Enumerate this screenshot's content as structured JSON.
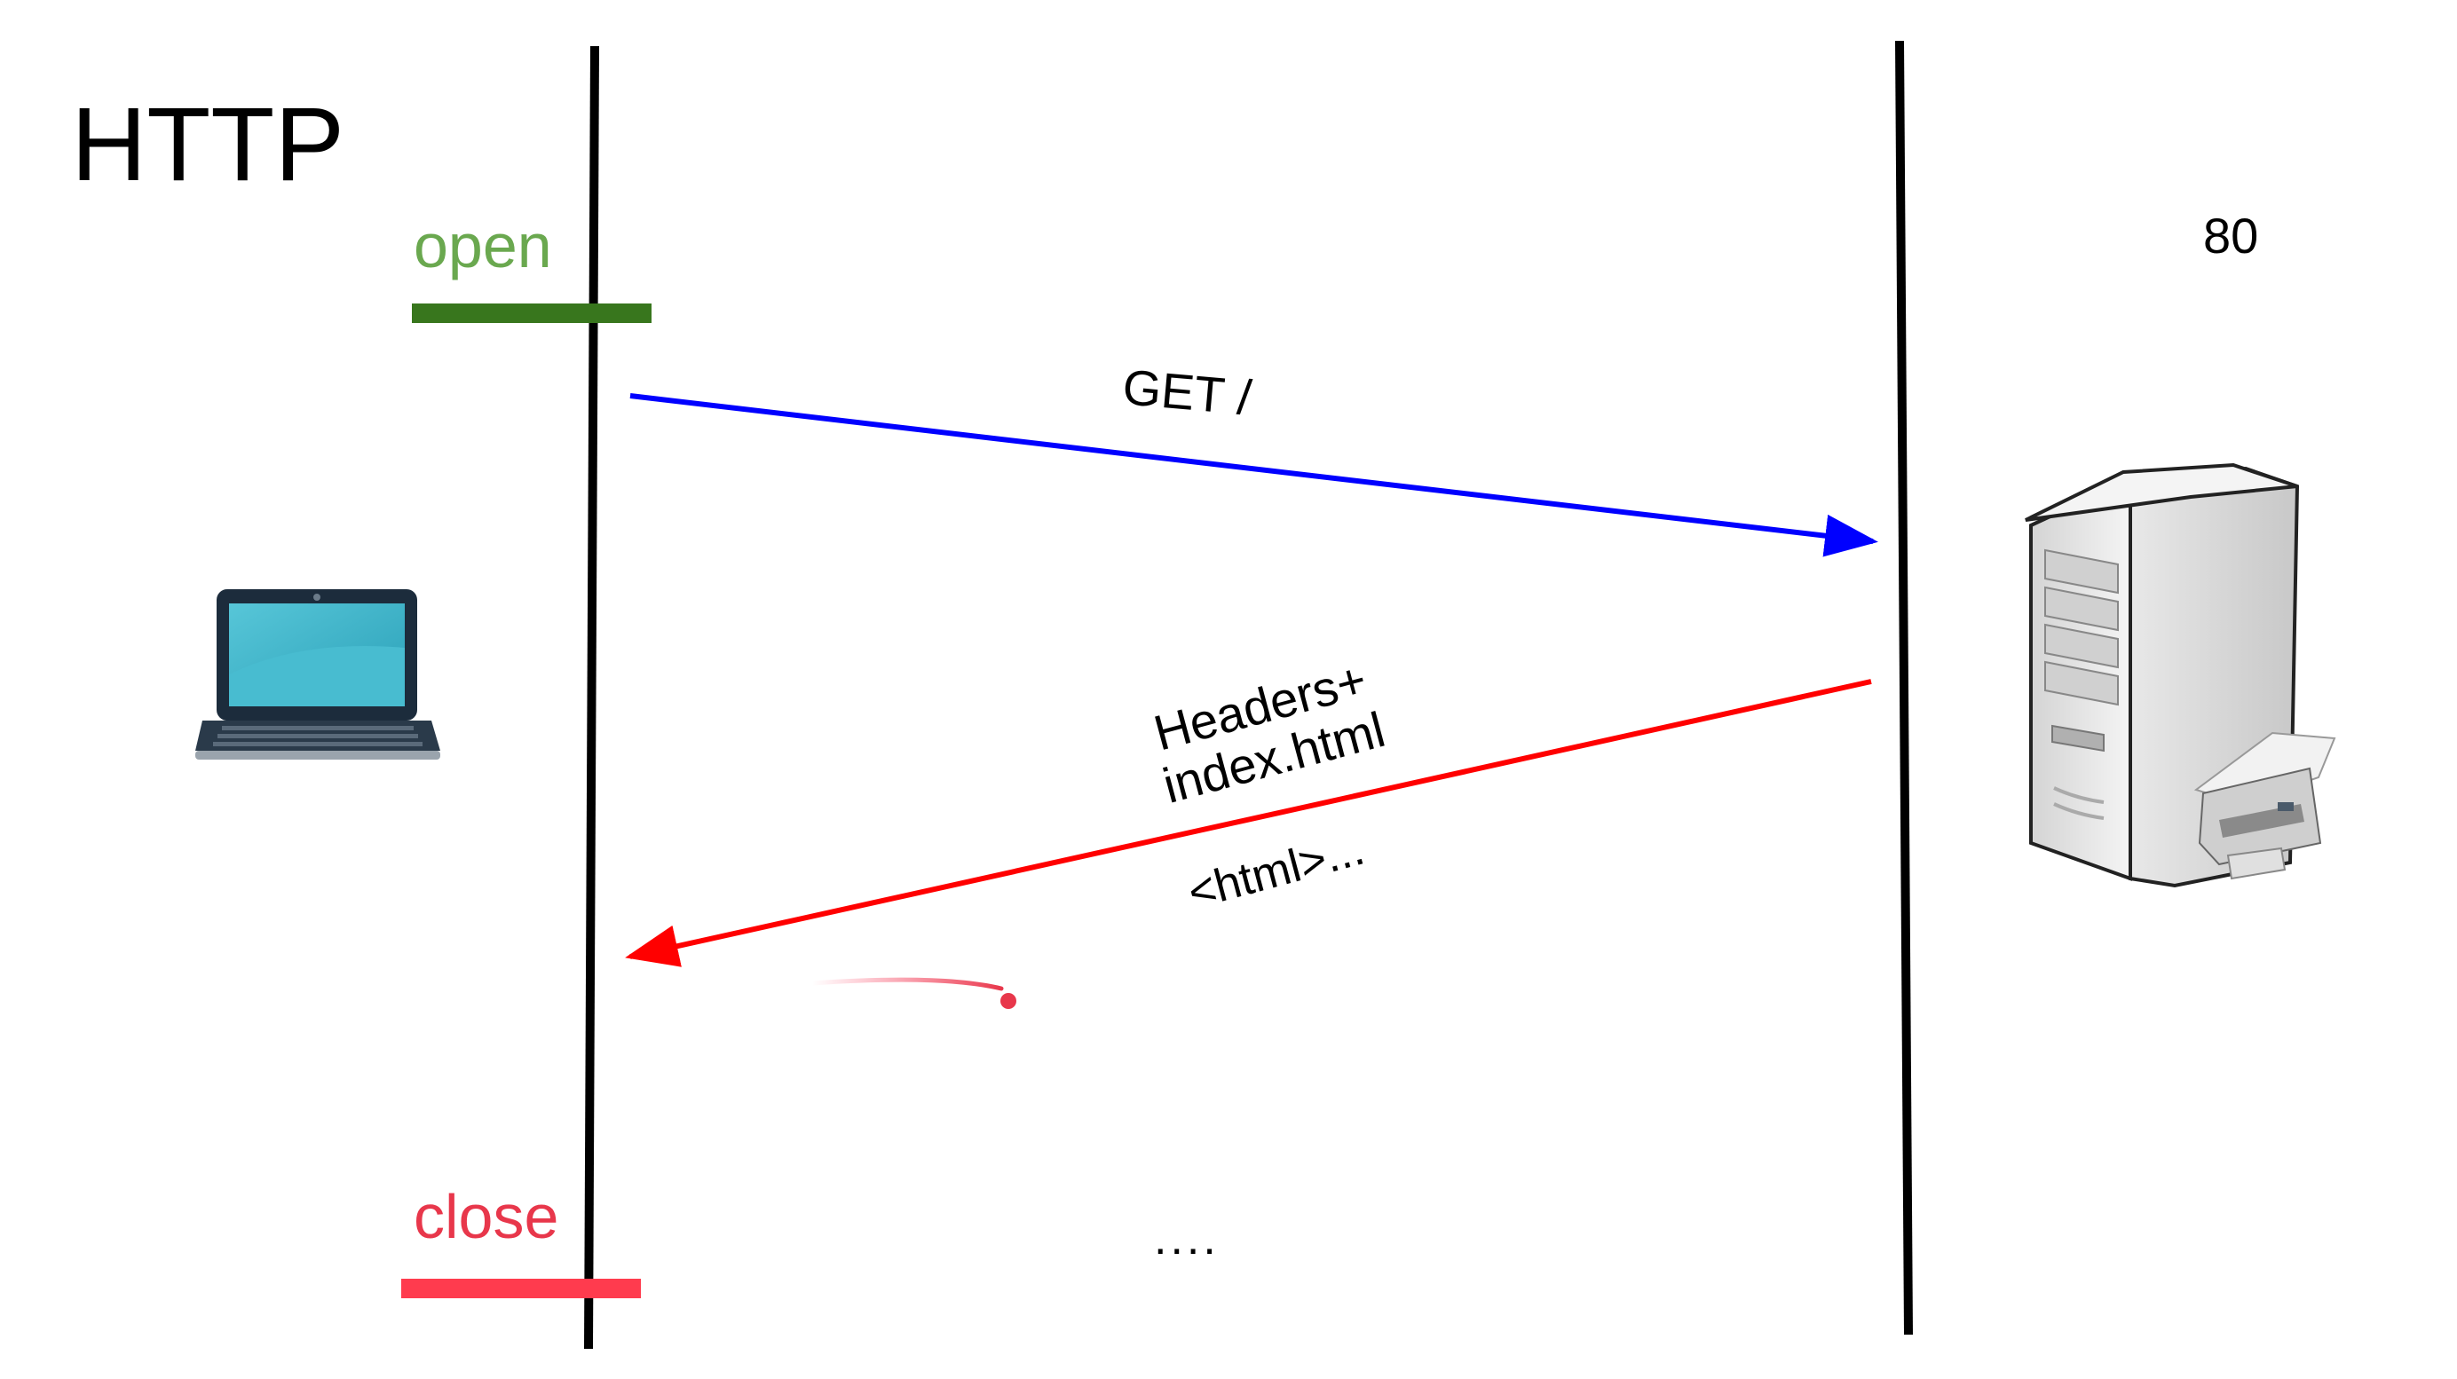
{
  "title": "HTTP",
  "port": "80",
  "connection": {
    "open_label": "open",
    "close_label": "close"
  },
  "request": {
    "label": "GET /"
  },
  "response": {
    "label_line1": "Headers+",
    "label_line2": "index.html",
    "body_label": "<html>..."
  },
  "ellipsis": "....",
  "icons": {
    "client": "laptop-icon",
    "server": "server-tower-icon"
  },
  "colors": {
    "open": "#6aa84f",
    "open_bar": "#38761d",
    "close": "#e8374b",
    "request_arrow": "#0000ff",
    "response_arrow": "#ff0000",
    "lifeline": "#000000"
  }
}
